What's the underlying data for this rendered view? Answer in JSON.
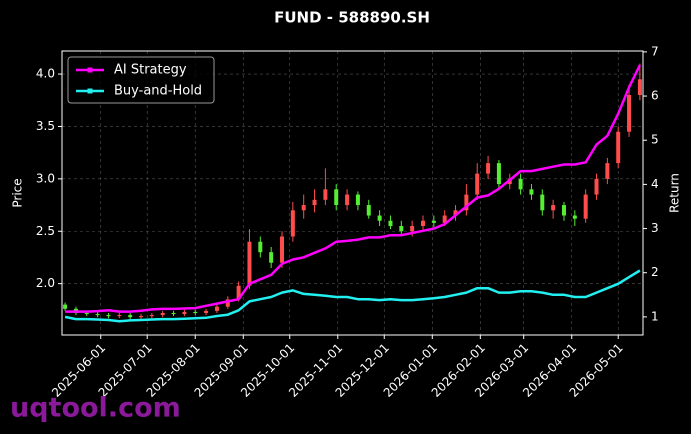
{
  "chart_data": {
    "type": "candlestick",
    "title": "FUND - 588890.SH",
    "y_label": "Price",
    "y2_label": "Return",
    "watermark": "uqtool.com",
    "grid": true,
    "legend_position": "upper left",
    "up_color": "#ff4d4d",
    "down_color": "#55ee33",
    "x": [
      "2025-05-09",
      "2025-05-16",
      "2025-05-23",
      "2025-05-30",
      "2025-06-06",
      "2025-06-13",
      "2025-06-20",
      "2025-06-27",
      "2025-07-04",
      "2025-07-11",
      "2025-07-18",
      "2025-07-25",
      "2025-08-01",
      "2025-08-08",
      "2025-08-15",
      "2025-08-22",
      "2025-08-29",
      "2025-09-05",
      "2025-09-12",
      "2025-09-19",
      "2025-09-26",
      "2025-10-03",
      "2025-10-10",
      "2025-10-17",
      "2025-10-24",
      "2025-10-31",
      "2025-11-07",
      "2025-11-14",
      "2025-11-21",
      "2025-11-28",
      "2025-12-05",
      "2025-12-12",
      "2025-12-19",
      "2025-12-26",
      "2026-01-02",
      "2026-01-09",
      "2026-01-16",
      "2026-01-23",
      "2026-01-30",
      "2026-02-06",
      "2026-02-13",
      "2026-02-20",
      "2026-02-27",
      "2026-03-06",
      "2026-03-13",
      "2026-03-20",
      "2026-03-27",
      "2026-04-03",
      "2026-04-10",
      "2026-04-17",
      "2026-04-24",
      "2026-05-01",
      "2026-05-08",
      "2026-05-15"
    ],
    "open": [
      1.8,
      1.76,
      1.72,
      1.71,
      1.7,
      1.69,
      1.7,
      1.68,
      1.69,
      1.7,
      1.72,
      1.71,
      1.73,
      1.72,
      1.74,
      1.78,
      1.85,
      1.98,
      2.4,
      2.3,
      2.2,
      2.45,
      2.7,
      2.75,
      2.8,
      2.9,
      2.75,
      2.85,
      2.75,
      2.65,
      2.6,
      2.55,
      2.5,
      2.55,
      2.6,
      2.58,
      2.65,
      2.7,
      2.85,
      3.05,
      3.15,
      2.95,
      3.0,
      2.9,
      2.85,
      2.7,
      2.75,
      2.65,
      2.62,
      2.85,
      3.0,
      3.15,
      3.45,
      3.8
    ],
    "high": [
      1.82,
      1.78,
      1.74,
      1.73,
      1.72,
      1.72,
      1.72,
      1.71,
      1.72,
      1.74,
      1.74,
      1.75,
      1.75,
      1.76,
      1.8,
      1.88,
      2.02,
      2.52,
      2.45,
      2.35,
      2.5,
      2.78,
      2.85,
      2.9,
      3.1,
      2.95,
      2.9,
      2.88,
      2.8,
      2.7,
      2.65,
      2.6,
      2.6,
      2.65,
      2.65,
      2.7,
      2.75,
      2.95,
      3.15,
      3.22,
      3.18,
      3.05,
      3.05,
      2.95,
      2.9,
      2.8,
      2.78,
      2.7,
      2.9,
      3.05,
      3.2,
      3.5,
      3.9,
      4.1
    ],
    "low": [
      1.74,
      1.7,
      1.69,
      1.68,
      1.67,
      1.67,
      1.66,
      1.66,
      1.67,
      1.68,
      1.69,
      1.69,
      1.7,
      1.7,
      1.72,
      1.76,
      1.83,
      1.95,
      2.25,
      2.15,
      2.15,
      2.4,
      2.62,
      2.68,
      2.75,
      2.7,
      2.7,
      2.7,
      2.62,
      2.55,
      2.52,
      2.46,
      2.45,
      2.5,
      2.54,
      2.55,
      2.6,
      2.65,
      2.8,
      3.0,
      2.9,
      2.9,
      2.85,
      2.8,
      2.65,
      2.62,
      2.6,
      2.55,
      2.58,
      2.8,
      2.95,
      3.1,
      3.4,
      3.75
    ],
    "close": [
      1.76,
      1.72,
      1.71,
      1.7,
      1.69,
      1.7,
      1.68,
      1.69,
      1.7,
      1.72,
      1.71,
      1.73,
      1.72,
      1.74,
      1.78,
      1.85,
      1.98,
      2.4,
      2.3,
      2.2,
      2.45,
      2.7,
      2.75,
      2.8,
      2.9,
      2.75,
      2.85,
      2.75,
      2.65,
      2.6,
      2.55,
      2.5,
      2.55,
      2.6,
      2.58,
      2.65,
      2.7,
      2.85,
      3.05,
      3.15,
      2.95,
      3.0,
      2.9,
      2.85,
      2.7,
      2.75,
      2.65,
      2.62,
      2.85,
      3.0,
      3.15,
      3.45,
      3.8,
      3.95
    ],
    "series": [
      {
        "name": "AI Strategy",
        "color": "#ff00ff",
        "axis": "y2",
        "values": [
          1.12,
          1.12,
          1.12,
          1.13,
          1.15,
          1.12,
          1.12,
          1.14,
          1.17,
          1.18,
          1.18,
          1.19,
          1.2,
          1.25,
          1.3,
          1.35,
          1.4,
          1.75,
          1.85,
          1.95,
          2.2,
          2.3,
          2.35,
          2.45,
          2.55,
          2.7,
          2.72,
          2.75,
          2.8,
          2.8,
          2.85,
          2.85,
          2.9,
          2.95,
          3.0,
          3.1,
          3.3,
          3.5,
          3.7,
          3.75,
          3.9,
          4.1,
          4.3,
          4.3,
          4.35,
          4.4,
          4.45,
          4.45,
          4.5,
          4.9,
          5.1,
          5.6,
          6.2,
          6.7
        ]
      },
      {
        "name": "Buy-and-Hold",
        "color": "#22f0f0",
        "axis": "y2",
        "values": [
          1.0,
          0.95,
          0.95,
          0.94,
          0.93,
          0.9,
          0.92,
          0.93,
          0.94,
          0.95,
          0.95,
          0.96,
          0.97,
          0.98,
          1.02,
          1.05,
          1.15,
          1.35,
          1.4,
          1.45,
          1.55,
          1.6,
          1.52,
          1.5,
          1.48,
          1.45,
          1.45,
          1.4,
          1.4,
          1.38,
          1.4,
          1.38,
          1.38,
          1.4,
          1.42,
          1.45,
          1.5,
          1.55,
          1.65,
          1.65,
          1.55,
          1.55,
          1.58,
          1.58,
          1.55,
          1.5,
          1.5,
          1.45,
          1.45,
          1.55,
          1.65,
          1.75,
          1.9,
          2.05
        ]
      }
    ],
    "xlim": [
      "2025-05-07",
      "2026-05-17"
    ],
    "xticks": [
      "2025-06-01",
      "2025-07-01",
      "2025-08-01",
      "2025-09-01",
      "2025-10-01",
      "2025-11-01",
      "2025-12-01",
      "2026-01-01",
      "2026-02-01",
      "2026-03-01",
      "2026-04-01",
      "2026-05-01"
    ],
    "ylim": [
      1.51,
      4.22
    ],
    "yticks": [
      {
        "value": 2,
        "label": "2.0"
      },
      2.5,
      {
        "value": 3,
        "label": "3.0"
      },
      3.5,
      {
        "value": 4,
        "label": "4.0"
      }
    ],
    "y2lim": [
      0.59,
      7.02
    ],
    "y2ticks": [
      1,
      2,
      3,
      4,
      5,
      6,
      7
    ]
  }
}
